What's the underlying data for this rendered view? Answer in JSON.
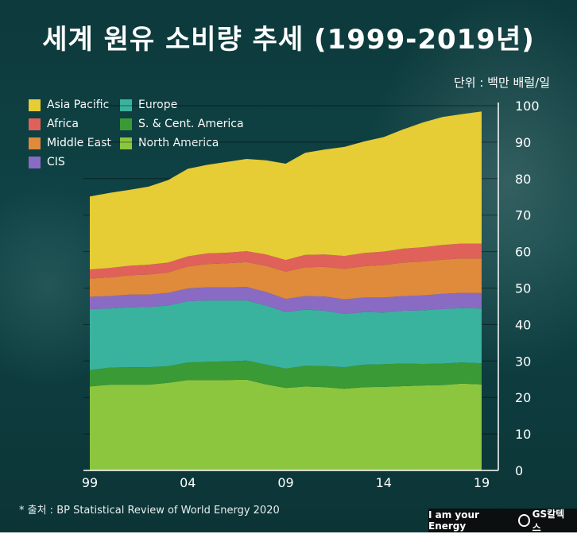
{
  "title": "세계 원유 소비량 추세 (1999-2019년)",
  "unit_label": "단위 : 백만 배럴/일",
  "source": "* 출처 : BP Statistical Review of World Energy 2020",
  "brand": {
    "tagline": "I am your Energy",
    "logo": "GS칼텍스"
  },
  "colors": {
    "North America": "#8cc63f",
    "S. & Cent. America": "#3a9a35",
    "Europe": "#3ab39e",
    "CIS": "#8a6bc4",
    "Middle East": "#e08a3c",
    "Africa": "#e0615a",
    "Asia Pacific": "#e6cc35"
  },
  "chart_data": {
    "type": "area",
    "stacked": true,
    "x": [
      1999,
      2000,
      2001,
      2002,
      2003,
      2004,
      2005,
      2006,
      2007,
      2008,
      2009,
      2010,
      2011,
      2012,
      2013,
      2014,
      2015,
      2016,
      2017,
      2018,
      2019
    ],
    "xticks": [
      {
        "value": 1999,
        "label": "99"
      },
      {
        "value": 2004,
        "label": "04"
      },
      {
        "value": 2009,
        "label": "09"
      },
      {
        "value": 2014,
        "label": "14"
      },
      {
        "value": 2019,
        "label": "19"
      }
    ],
    "ylim": [
      0,
      100
    ],
    "yticks": [
      0,
      10,
      20,
      30,
      40,
      50,
      60,
      70,
      80,
      90,
      100
    ],
    "grid": true,
    "legend_order": [
      "Asia Pacific",
      "Europe",
      "Africa",
      "S. & Cent. America",
      "Middle East",
      "North America",
      "CIS"
    ],
    "series": [
      {
        "name": "North America",
        "values": [
          23.0,
          23.5,
          23.5,
          23.5,
          24.0,
          24.8,
          24.8,
          24.8,
          24.9,
          23.6,
          22.6,
          23.0,
          22.8,
          22.4,
          22.8,
          22.9,
          23.1,
          23.3,
          23.4,
          23.8,
          23.6
        ]
      },
      {
        "name": "S. & Cent. America",
        "values": [
          4.5,
          4.7,
          4.8,
          4.8,
          4.6,
          4.8,
          5.0,
          5.1,
          5.2,
          5.4,
          5.3,
          5.7,
          5.8,
          5.9,
          6.2,
          6.2,
          6.2,
          5.9,
          5.9,
          5.8,
          5.8
        ]
      },
      {
        "name": "Europe",
        "values": [
          16.7,
          16.2,
          16.4,
          16.5,
          16.6,
          16.8,
          16.8,
          16.7,
          16.5,
          16.2,
          15.5,
          15.4,
          15.2,
          14.6,
          14.4,
          14.2,
          14.5,
          14.7,
          15.0,
          14.9,
          15.0
        ]
      },
      {
        "name": "CIS",
        "values": [
          3.4,
          3.4,
          3.5,
          3.4,
          3.5,
          3.5,
          3.6,
          3.6,
          3.7,
          3.7,
          3.6,
          3.7,
          3.9,
          4.0,
          4.0,
          4.1,
          4.0,
          4.1,
          4.1,
          4.2,
          4.2
        ]
      },
      {
        "name": "Middle East",
        "values": [
          5.0,
          5.1,
          5.3,
          5.5,
          5.6,
          6.0,
          6.4,
          6.6,
          6.8,
          7.2,
          7.5,
          7.9,
          8.1,
          8.4,
          8.6,
          8.9,
          9.2,
          9.3,
          9.4,
          9.4,
          9.5
        ]
      },
      {
        "name": "Africa",
        "values": [
          2.5,
          2.6,
          2.6,
          2.7,
          2.7,
          2.8,
          2.9,
          2.9,
          3.0,
          3.1,
          3.2,
          3.4,
          3.4,
          3.5,
          3.6,
          3.7,
          3.8,
          3.9,
          4.0,
          4.1,
          4.1
        ]
      },
      {
        "name": "Asia Pacific",
        "values": [
          20.0,
          20.6,
          20.8,
          21.4,
          22.6,
          24.0,
          24.3,
          24.9,
          25.3,
          25.8,
          26.4,
          28.0,
          28.8,
          29.9,
          30.6,
          31.4,
          32.7,
          34.2,
          35.1,
          35.5,
          36.2
        ]
      }
    ]
  }
}
